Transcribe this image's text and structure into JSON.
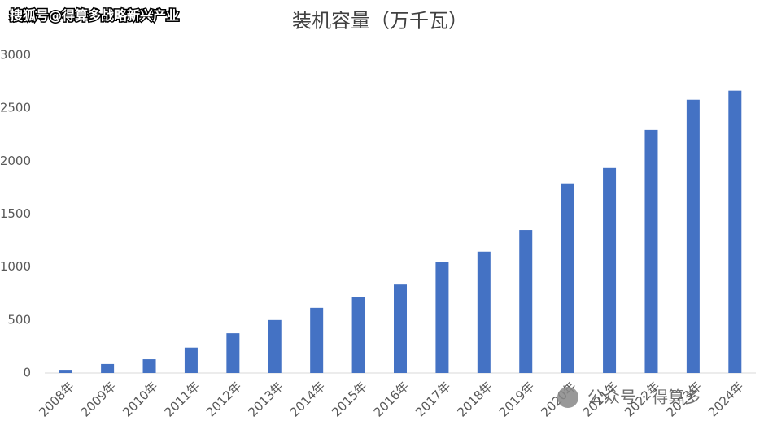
{
  "chart_data": {
    "type": "bar",
    "title": "装机容量（万千瓦）",
    "watermark": "搜狐号@得算多战略新兴产业",
    "badge": "公众号 · 得算多",
    "categories": [
      "2008年",
      "2009年",
      "2010年",
      "2011年",
      "2012年",
      "2013年",
      "2014年",
      "2015年",
      "2016年",
      "2017年",
      "2018年",
      "2019年",
      "2020年",
      "2021年",
      "2022年",
      "2023年",
      "2024年"
    ],
    "values": [
      30,
      85,
      130,
      240,
      375,
      500,
      615,
      715,
      835,
      1050,
      1145,
      1350,
      1790,
      1935,
      2295,
      2580,
      2665
    ],
    "color": "#4472c4",
    "ylim": [
      0,
      3000
    ],
    "yticks": [
      0,
      500,
      1000,
      1500,
      2000,
      2500,
      3000
    ],
    "grid": false
  }
}
